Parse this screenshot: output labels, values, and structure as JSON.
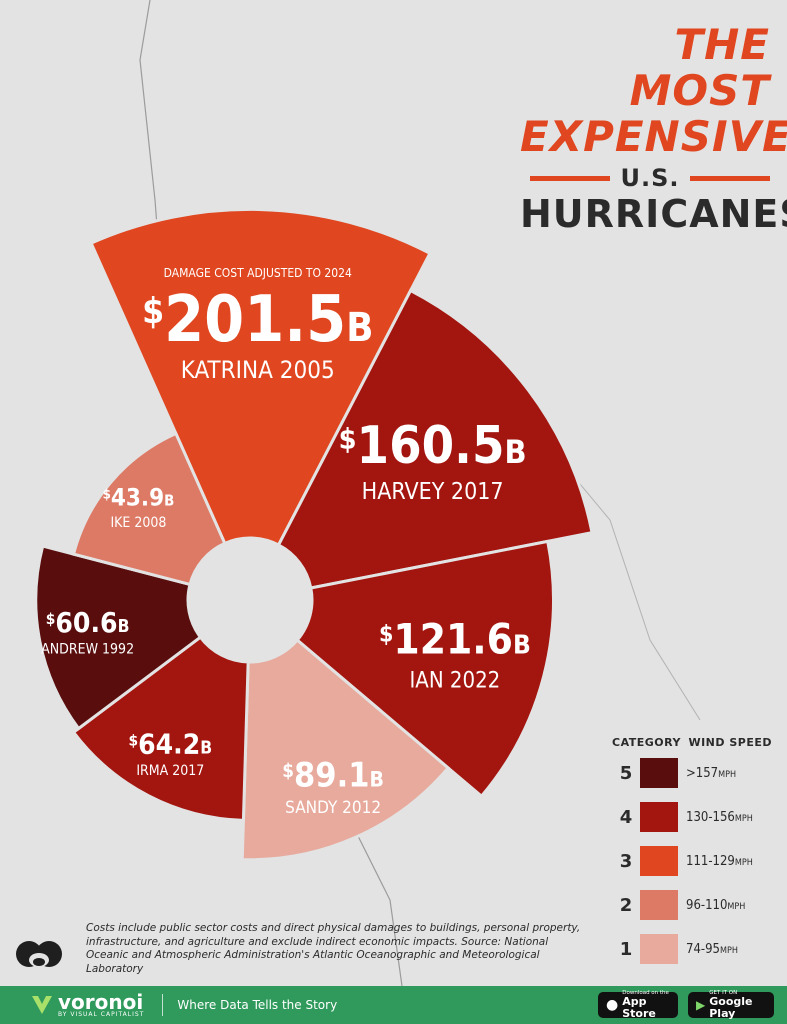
{
  "title": {
    "line1": "THE MOST",
    "line2": "EXPENSIVE",
    "line3": "U.S.",
    "line4": "HURRICANES"
  },
  "chart_data": {
    "type": "pie",
    "subtitle": "DAMAGE COST ADJUSTED TO 2024",
    "unit": "$ billions",
    "slices": [
      {
        "name": "KATRINA 2005",
        "value": 201.5,
        "value_label": "201.5",
        "category": 3
      },
      {
        "name": "HARVEY 2017",
        "value": 160.5,
        "value_label": "160.5",
        "category": 4
      },
      {
        "name": "IAN 2022",
        "value": 121.6,
        "value_label": "121.6",
        "category": 4
      },
      {
        "name": "SANDY 2012",
        "value": 89.1,
        "value_label": "89.1",
        "category": 1
      },
      {
        "name": "IRMA 2017",
        "value": 64.2,
        "value_label": "64.2",
        "category": 4
      },
      {
        "name": "ANDREW 1992",
        "value": 60.6,
        "value_label": "60.6",
        "category": 5
      },
      {
        "name": "IKE 2008",
        "value": 43.9,
        "value_label": "43.9",
        "category": 2
      }
    ],
    "legend": {
      "category_header": "CATEGORY",
      "speed_header": "WIND SPEED",
      "items": [
        {
          "category": "5",
          "speed": ">157",
          "unit": "MPH",
          "color": "#5a0d0d"
        },
        {
          "category": "4",
          "speed": "130-156",
          "unit": "MPH",
          "color": "#a3150f"
        },
        {
          "category": "3",
          "speed": "111-129",
          "unit": "MPH",
          "color": "#e0461f"
        },
        {
          "category": "2",
          "speed": "96-110",
          "unit": "MPH",
          "color": "#dd7a66"
        },
        {
          "category": "1",
          "speed": "74-95",
          "unit": "MPH",
          "color": "#e7aa9d"
        }
      ]
    }
  },
  "footnote": "Costs include public sector costs and direct physical damages to buildings, personal property, infrastructure, and agriculture and exclude indirect economic impacts. Source: National Oceanic and Atmospheric Administration's Atlantic Oceanographic and Meteorological Laboratory",
  "footer": {
    "brand": "voronoi",
    "brand_sub": "BY VISUAL CAPITALIST",
    "tagline": "Where Data Tells the Story",
    "app_store_small": "Download on the",
    "app_store_big": "App Store",
    "google_small": "GET IT ON",
    "google_big": "Google Play"
  }
}
